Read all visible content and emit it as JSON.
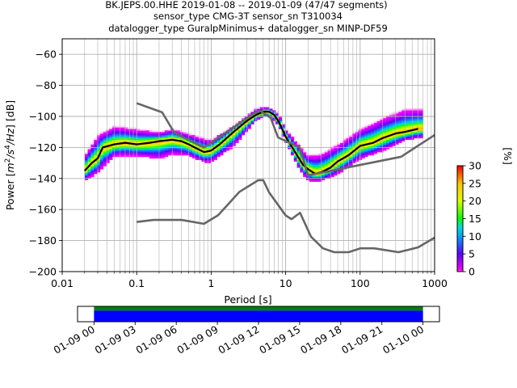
{
  "figure": {
    "title_lines": [
      "BK.JEPS.00.HHE   2019-01-08 -- 2019-01-09  (47/47 segments)",
      "sensor_type CMG-3T sensor_sn T310034",
      "datalogger_type GuralpMinimus+ datalogger_sn MINP-DF59"
    ]
  },
  "chart_data": [
    {
      "type": "heatmap",
      "name": "probabilistic-psd",
      "xlabel": "Period [s]",
      "ylabel": "Power [m²/s⁴/Hz] [dB]",
      "ylabel_parts": {
        "pre": "Power [",
        "m": "m",
        "exp2": "2",
        "slash_s": "/s",
        "exp4": "4",
        "hz": "/Hz",
        "post": "] [dB]"
      },
      "x_scale": "log",
      "xlim": [
        0.01,
        1000
      ],
      "ylim": [
        -200,
        -50
      ],
      "x_ticks": [
        0.01,
        0.1,
        1,
        10,
        100,
        1000
      ],
      "x_tick_labels": [
        "0.01",
        "0.1",
        "1",
        "10",
        "100",
        "1000"
      ],
      "y_ticks": [
        -200,
        -180,
        -160,
        -140,
        -120,
        -100,
        -80,
        -60
      ],
      "y_tick_labels": [
        "−200",
        "−180",
        "−160",
        "−140",
        "−120",
        "−100",
        "−80",
        "−60"
      ],
      "grid": true,
      "colorbar": {
        "label": "[%]",
        "range": [
          0,
          30
        ],
        "ticks": [
          0,
          5,
          10,
          15,
          20,
          25,
          30
        ],
        "tick_labels": [
          "0",
          "5",
          "10",
          "15",
          "20",
          "25",
          "30"
        ],
        "colormap": "pqlx"
      },
      "series": [
        {
          "name": "mode",
          "style": "black line",
          "x": [
            0.02,
            0.025,
            0.03,
            0.035,
            0.05,
            0.07,
            0.1,
            0.15,
            0.2,
            0.3,
            0.4,
            0.5,
            0.6,
            0.8,
            1.0,
            1.3,
            2.0,
            3.0,
            4.0,
            5.0,
            6.0,
            7.0,
            8.0,
            10.0,
            13.0,
            17.0,
            20.0,
            25.0,
            30.0,
            40.0,
            50.0,
            70.0,
            100.0,
            150.0,
            200.0,
            300.0,
            400.0,
            600.0
          ],
          "y": [
            -135,
            -130,
            -127,
            -120,
            -118,
            -117,
            -118,
            -117,
            -116,
            -115,
            -116,
            -118,
            -120,
            -123,
            -122,
            -118,
            -110,
            -103,
            -99,
            -97,
            -97,
            -99,
            -103,
            -113,
            -122,
            -131,
            -134,
            -137,
            -136,
            -133,
            -129,
            -125,
            -119,
            -117,
            -114,
            -111,
            -110,
            -108
          ]
        },
        {
          "name": "NHNM",
          "style": "gray line",
          "x": [
            0.1,
            0.22,
            0.32,
            0.8,
            3.8,
            4.6,
            6.3,
            7.9,
            15.4,
            20.0,
            354.8,
            1000.0
          ],
          "y": [
            -91.5,
            -97.4,
            -110.5,
            -120.0,
            -97.9,
            -96.5,
            -101.0,
            -113.5,
            -120.0,
            -138.0,
            -126.0,
            -112.0
          ]
        },
        {
          "name": "NLNM",
          "style": "gray line",
          "x": [
            0.1,
            0.17,
            0.4,
            0.8,
            1.24,
            2.4,
            4.3,
            5.0,
            6.0,
            10.0,
            12.0,
            15.6,
            21.9,
            31.6,
            45.0,
            70.0,
            101.0,
            154.0,
            328.0,
            600.0,
            1000.0
          ],
          "y": [
            -168.0,
            -166.7,
            -166.7,
            -169.2,
            -163.7,
            -148.6,
            -141.1,
            -141.1,
            -149.0,
            -163.8,
            -166.2,
            -162.1,
            -177.5,
            -185.0,
            -187.5,
            -187.5,
            -185.0,
            -185.0,
            -187.5,
            -184.4,
            -178.1
          ]
        }
      ],
      "density_band": {
        "period": [
          0.02,
          0.03,
          0.05,
          0.1,
          0.2,
          0.3,
          0.5,
          0.8,
          1.0,
          2.0,
          4.0,
          5.0,
          6.0,
          8.0,
          10.0,
          15.0,
          20.0,
          30.0,
          50.0,
          100.0,
          200.0,
          400.0,
          700.0
        ],
        "power_low": [
          -142,
          -137,
          -126,
          -126,
          -128,
          -125,
          -126,
          -130,
          -130,
          -120,
          -103,
          -101,
          -100,
          -106,
          -117,
          -134,
          -142,
          -142,
          -138,
          -128,
          -123,
          -116,
          -114
        ],
        "power_high": [
          -125,
          -112,
          -106,
          -108,
          -110,
          -108,
          -111,
          -114,
          -115,
          -106,
          -95,
          -94,
          -94,
          -98,
          -108,
          -118,
          -125,
          -124,
          -118,
          -108,
          -101,
          -95,
          -95
        ]
      }
    },
    {
      "type": "timeline",
      "name": "data-coverage",
      "x_tick_labels": [
        "01-09 00",
        "01-09 03",
        "01-09 06",
        "01-09 09",
        "01-09 12",
        "01-09 15",
        "01-09 18",
        "01-09 21",
        "01-10 00"
      ],
      "x_ticks_hours": [
        0,
        3,
        6,
        9,
        12,
        15,
        18,
        21,
        24
      ],
      "xlim_hours": [
        -1.2,
        25.2
      ],
      "coverage": [
        {
          "name": "data-used",
          "start_hour": 0,
          "end_hour": 24,
          "color": "#008000"
        },
        {
          "name": "data-available",
          "start_hour": 0,
          "end_hour": 24,
          "color": "#0000ff"
        }
      ]
    }
  ]
}
